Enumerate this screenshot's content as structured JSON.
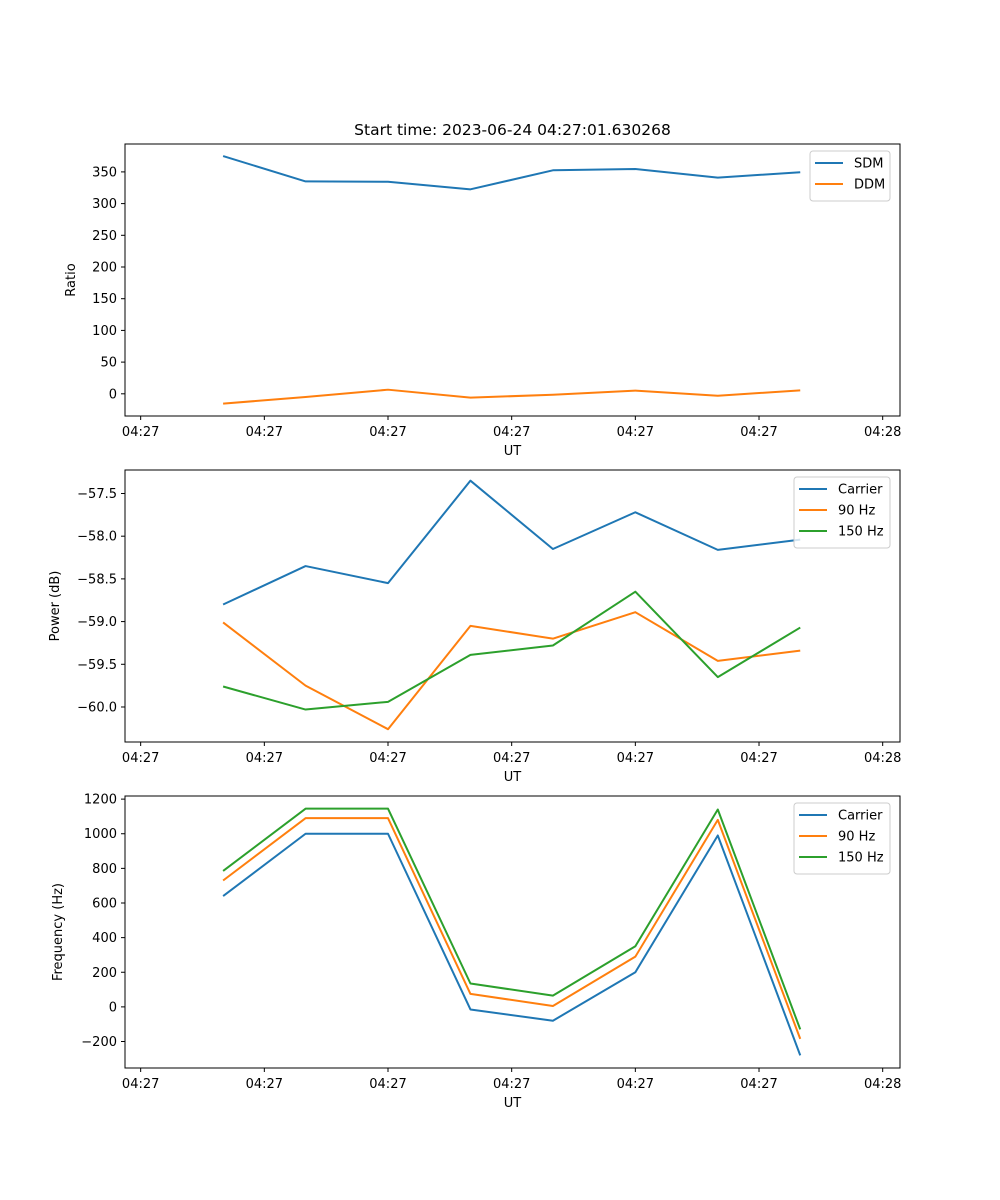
{
  "figure": {
    "background": "#ffffff"
  },
  "chart_data": [
    {
      "type": "line",
      "title": "Start time: 2023-06-24 04:27:01.630268",
      "xlabel": "UT",
      "ylabel": "Ratio",
      "x_tick_labels": [
        "04:27",
        "04:27",
        "04:27",
        "04:27",
        "04:27",
        "04:27",
        "04:28"
      ],
      "y_ticks": [
        0,
        50,
        100,
        150,
        200,
        250,
        300,
        350
      ],
      "ylim": [
        -35,
        394
      ],
      "xlim": [
        -0.19,
        9.21
      ],
      "x": [
        1,
        2,
        3,
        4,
        5,
        6,
        7,
        8
      ],
      "legend": "top-right",
      "grid": false,
      "series": [
        {
          "name": "SDM",
          "color": "#1f77b4",
          "values": [
            375,
            335,
            334.5,
            322.5,
            352.5,
            354.5,
            341,
            349.5
          ]
        },
        {
          "name": "DDM",
          "color": "#ff7f0e",
          "values": [
            -15.5,
            -5,
            6.5,
            -6,
            -1.5,
            5,
            -3,
            5.5
          ]
        }
      ]
    },
    {
      "type": "line",
      "title": "",
      "xlabel": "UT",
      "ylabel": "Power (dB)",
      "x_tick_labels": [
        "04:27",
        "04:27",
        "04:27",
        "04:27",
        "04:27",
        "04:27",
        "04:28"
      ],
      "y_ticks": [
        -60.0,
        -59.5,
        -59.0,
        -58.5,
        -58.0,
        -57.5
      ],
      "y_tick_labels": [
        "−60.0",
        "−59.5",
        "−59.0",
        "−58.5",
        "−58.0",
        "−57.5"
      ],
      "ylim": [
        -60.41,
        -57.225
      ],
      "xlim": [
        -0.19,
        9.21
      ],
      "x": [
        1,
        2,
        3,
        4,
        5,
        6,
        7,
        8
      ],
      "legend": "top-right",
      "grid": false,
      "series": [
        {
          "name": "Carrier",
          "color": "#1f77b4",
          "values": [
            -58.8,
            -58.35,
            -58.55,
            -57.35,
            -58.15,
            -57.72,
            -58.16,
            -58.04
          ]
        },
        {
          "name": "90 Hz",
          "color": "#ff7f0e",
          "values": [
            -59.01,
            -59.75,
            -60.26,
            -59.05,
            -59.2,
            -58.89,
            -59.46,
            -59.34
          ]
        },
        {
          "name": "150 Hz",
          "color": "#2ca02c",
          "values": [
            -59.76,
            -60.03,
            -59.94,
            -59.39,
            -59.28,
            -58.65,
            -59.65,
            -59.07
          ]
        }
      ]
    },
    {
      "type": "line",
      "title": "",
      "xlabel": "UT",
      "ylabel": "Frequency (Hz)",
      "x_tick_labels": [
        "04:27",
        "04:27",
        "04:27",
        "04:27",
        "04:27",
        "04:27",
        "04:28"
      ],
      "y_ticks": [
        -200,
        0,
        200,
        400,
        600,
        800,
        1000,
        1200
      ],
      "y_tick_labels": [
        "−200",
        "0",
        "200",
        "400",
        "600",
        "800",
        "1000",
        "1200"
      ],
      "ylim": [
        -353,
        1218
      ],
      "xlim": [
        -0.19,
        9.21
      ],
      "x": [
        1,
        2,
        3,
        4,
        5,
        6,
        7,
        8
      ],
      "legend": "top-right",
      "grid": false,
      "series": [
        {
          "name": "Carrier",
          "color": "#1f77b4",
          "values": [
            640,
            1000,
            1000,
            -15,
            -80,
            200,
            990,
            -280
          ]
        },
        {
          "name": "90 Hz",
          "color": "#ff7f0e",
          "values": [
            730,
            1090,
            1090,
            75,
            5,
            290,
            1080,
            -185
          ]
        },
        {
          "name": "150 Hz",
          "color": "#2ca02c",
          "values": [
            785,
            1145,
            1145,
            135,
            65,
            350,
            1140,
            -130
          ]
        }
      ]
    }
  ]
}
